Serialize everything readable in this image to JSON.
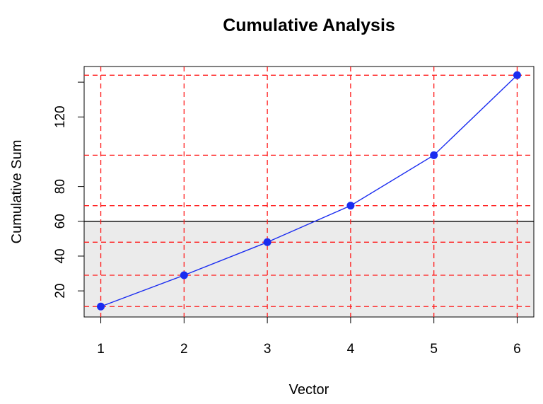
{
  "chart_data": {
    "type": "line",
    "title": "Cumulative Analysis",
    "xlabel": "Vector",
    "ylabel": "Cumulative Sum",
    "x": [
      1,
      2,
      3,
      4,
      5,
      6
    ],
    "series": [
      {
        "values": [
          11,
          29,
          48,
          69,
          98,
          144
        ],
        "color": "#1a2cf0"
      }
    ],
    "xlim": [
      0.8,
      6.2
    ],
    "ylim": [
      5,
      149
    ],
    "xticks": [
      "1",
      "2",
      "3",
      "4",
      "5",
      "6"
    ],
    "yticks": [
      "20",
      "40",
      "60",
      "80",
      "120"
    ],
    "ytick_values": [
      20,
      40,
      60,
      80,
      120
    ],
    "grid": true,
    "grid_color": "#ff1a1a",
    "grid_style": "dashed",
    "grid_lines_at_data_points": true,
    "shaded_region": {
      "y_min": 5,
      "y_max": 60,
      "color": "#ebebeb"
    },
    "threshold_line": {
      "y": 60,
      "color": "#000000"
    },
    "marker_color": "#1a2cf0",
    "legend": "none"
  }
}
